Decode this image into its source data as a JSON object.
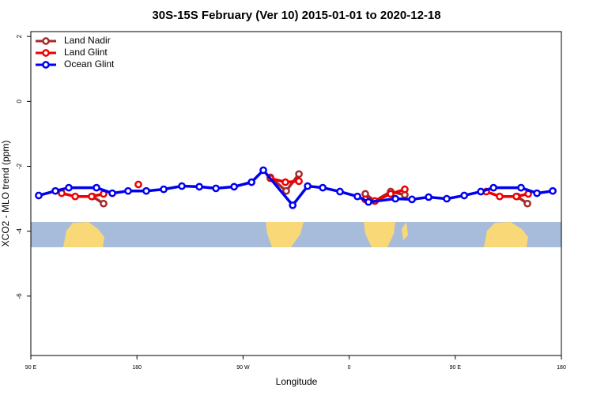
{
  "chart_data": {
    "type": "line",
    "title": "30S-15S February (Ver 10)   2015-01-01 to 2020-12-18",
    "x_label": "Longitude",
    "y_label": "XCO2 - MLO trend (ppm)",
    "xlim": [
      90,
      540
    ],
    "ylim": [
      -7.83,
      2.15
    ],
    "xticks": [
      {
        "value": 90,
        "label": "90 E"
      },
      180,
      {
        "value": 270,
        "label": "90 W"
      },
      {
        "value": 360,
        "label": "0"
      },
      {
        "value": 450,
        "label": "90 E"
      },
      {
        "value": 540,
        "label": "180"
      }
    ],
    "yticks": [
      2,
      0,
      -2,
      -4,
      -6
    ],
    "legend": "top-left",
    "series": [
      {
        "name": "Land Nadir",
        "color": "#a52a2a",
        "x": [
          142.3,
          151.7,
          null,
          293.2,
          306.6,
          317.4,
          null,
          373.7,
          381.8,
          395.2,
          407.2,
          null,
          502.5,
          511.2
        ],
        "values": [
          -2.93,
          -3.15,
          null,
          -2.34,
          -2.76,
          -2.24,
          null,
          -2.85,
          -3.07,
          -2.78,
          -2.88,
          null,
          -2.93,
          -3.15
        ]
      },
      {
        "name": "Land Glint",
        "color": "#ee0000",
        "x": [
          116.2,
          127.6,
          141.6,
          151.7,
          null,
          181.2,
          null,
          293.2,
          305.9,
          317.4,
          null,
          373.7,
          381.8,
          395.2,
          407.2,
          null,
          476.3,
          487.7,
          501.8,
          511.9
        ],
        "values": [
          -2.83,
          -2.93,
          -2.93,
          -2.85,
          null,
          -2.56,
          null,
          -2.37,
          -2.49,
          -2.46,
          null,
          -3.02,
          -3.07,
          -2.85,
          -2.71,
          null,
          -2.78,
          -2.93,
          -2.93,
          -2.85
        ]
      },
      {
        "name": "Ocean Glint",
        "color": "#0000ee",
        "x": [
          96.7,
          110.8,
          122.2,
          145.7,
          159.1,
          172.5,
          187.9,
          202.7,
          218.1,
          232.9,
          247.0,
          262.4,
          277.2,
          287.2,
          312.1,
          324.8,
          337.6,
          352.2,
          367.0,
          376.4,
          399.2,
          413.3,
          427.4,
          442.8,
          457.6,
          471.7,
          482.4,
          505.8,
          519.3,
          532.7
        ],
        "values": [
          -2.9,
          -2.76,
          -2.66,
          -2.66,
          -2.83,
          -2.76,
          -2.76,
          -2.71,
          -2.61,
          -2.63,
          -2.68,
          -2.63,
          -2.49,
          -2.12,
          -3.2,
          -2.61,
          -2.66,
          -2.78,
          -2.93,
          -3.1,
          -3.0,
          -3.02,
          -2.95,
          -3.0,
          -2.9,
          -2.78,
          -2.66,
          -2.66,
          -2.83,
          -2.76
        ]
      }
    ]
  }
}
